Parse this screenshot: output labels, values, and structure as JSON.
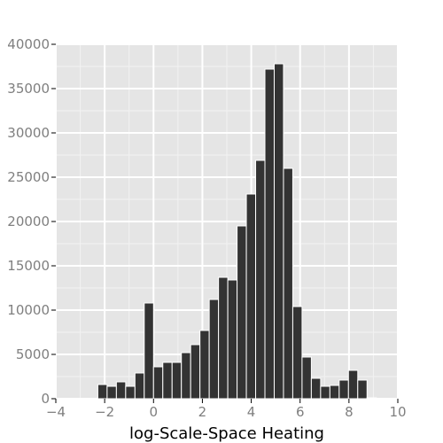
{
  "chart_data": {
    "type": "bar",
    "title": "",
    "xlabel": "log-Scale-Space Heating",
    "ylabel": "",
    "xlim": [
      -4,
      10
    ],
    "ylim": [
      0,
      40000
    ],
    "x_ticks": [
      -4,
      -2,
      0,
      2,
      4,
      6,
      8,
      10
    ],
    "x_tick_labels": [
      "−4",
      "−2",
      "0",
      "2",
      "4",
      "6",
      "8",
      "10"
    ],
    "y_ticks": [
      0,
      5000,
      10000,
      15000,
      20000,
      25000,
      30000,
      35000,
      40000
    ],
    "y_tick_labels": [
      "0",
      "5000",
      "10000",
      "15000",
      "20000",
      "25000",
      "30000",
      "35000",
      "40000"
    ],
    "grid": true,
    "legend": "none",
    "bin_width": 0.38,
    "bins": [
      {
        "x0": -2.28,
        "x1": -1.9,
        "count": 1600
      },
      {
        "x0": -1.9,
        "x1": -1.52,
        "count": 1400
      },
      {
        "x0": -1.52,
        "x1": -1.14,
        "count": 1900
      },
      {
        "x0": -1.14,
        "x1": -0.76,
        "count": 1400
      },
      {
        "x0": -0.76,
        "x1": -0.38,
        "count": 2900
      },
      {
        "x0": -0.38,
        "x1": 0.0,
        "count": 10800
      },
      {
        "x0": 0.0,
        "x1": 0.38,
        "count": 3600
      },
      {
        "x0": 0.38,
        "x1": 0.76,
        "count": 4100
      },
      {
        "x0": 0.76,
        "x1": 1.14,
        "count": 4100
      },
      {
        "x0": 1.14,
        "x1": 1.52,
        "count": 5200
      },
      {
        "x0": 1.52,
        "x1": 1.9,
        "count": 6100
      },
      {
        "x0": 1.9,
        "x1": 2.28,
        "count": 7700
      },
      {
        "x0": 2.28,
        "x1": 2.66,
        "count": 11200
      },
      {
        "x0": 2.66,
        "x1": 3.04,
        "count": 13700
      },
      {
        "x0": 3.04,
        "x1": 3.42,
        "count": 13400
      },
      {
        "x0": 3.42,
        "x1": 3.8,
        "count": 19500
      },
      {
        "x0": 3.8,
        "x1": 4.18,
        "count": 23100
      },
      {
        "x0": 4.18,
        "x1": 4.56,
        "count": 26900
      },
      {
        "x0": 4.56,
        "x1": 4.94,
        "count": 37200
      },
      {
        "x0": 4.94,
        "x1": 5.32,
        "count": 37800
      },
      {
        "x0": 5.32,
        "x1": 5.7,
        "count": 26000
      },
      {
        "x0": 5.7,
        "x1": 6.08,
        "count": 10400
      },
      {
        "x0": 6.08,
        "x1": 6.46,
        "count": 4700
      },
      {
        "x0": 6.46,
        "x1": 6.84,
        "count": 2300
      },
      {
        "x0": 6.84,
        "x1": 7.22,
        "count": 1400
      },
      {
        "x0": 7.22,
        "x1": 7.6,
        "count": 1500
      },
      {
        "x0": 7.6,
        "x1": 7.98,
        "count": 2100
      },
      {
        "x0": 7.98,
        "x1": 8.36,
        "count": 3200
      },
      {
        "x0": 8.36,
        "x1": 8.74,
        "count": 2100
      },
      {
        "x0": 8.74,
        "x1": 9.12,
        "count": 100
      }
    ],
    "colors": {
      "panel": "#e5e5e5",
      "grid_major": "#ffffff",
      "grid_minor": "#f2f2f2",
      "bar_fill": "#333333",
      "bar_outline": "#ffffff",
      "tick_label": "#7f7f7f",
      "axis_title": "#000000"
    }
  }
}
